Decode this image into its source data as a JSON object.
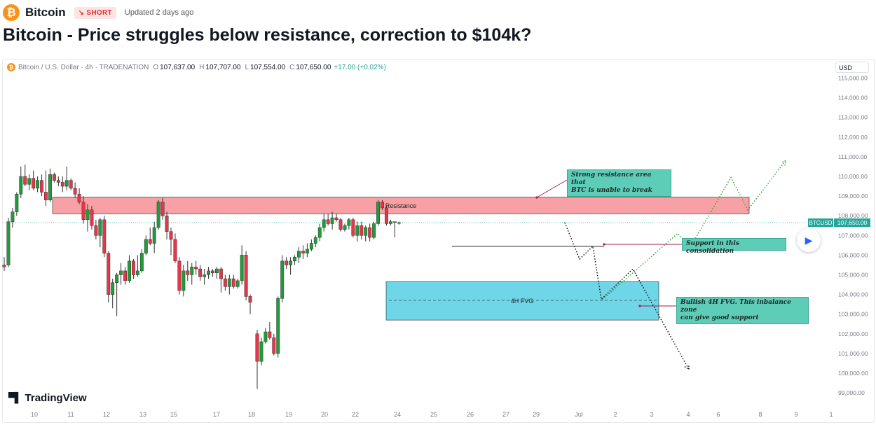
{
  "header": {
    "asset_name": "Bitcoin",
    "badge": "SHORT",
    "badge_arrow": "↘",
    "updated": "Updated 2 days ago"
  },
  "title": "Bitcoin - Price struggles below resistance, correction to $104k?",
  "legend": {
    "symbol": "Bitcoin / U.S. Dollar · 4h · TRADENATION",
    "open_label": "O",
    "open": "107,637.00",
    "high_label": "H",
    "high": "107,707.00",
    "low_label": "L",
    "low": "107,554.00",
    "close_label": "C",
    "close": "107,650.00",
    "change": "+17.00 (+0.02%)"
  },
  "currency_button": "USD",
  "price_tag": {
    "symbol": "BTCUSD",
    "price": "107,650.00"
  },
  "brand": "TradingView",
  "annotations": {
    "resistance_note": [
      "Strong resistance area that",
      "BTC is unable to break"
    ],
    "consolidation_note": "Support in this consolidation",
    "fvg_note": [
      "Bullish 4H FVG. This inbalance zone",
      "can give good support"
    ]
  },
  "chart_data": {
    "type": "candlestick",
    "interval": "4h",
    "y_axis": {
      "ticks": [
        "115,000.00",
        "114,000.00",
        "113,000.00",
        "112,000.00",
        "111,000.00",
        "110,000.00",
        "109,000.00",
        "108,000.00",
        "107,000.00",
        "106,000.00",
        "105,000.00",
        "104,000.00",
        "103,000.00",
        "102,000.00",
        "101,000.00",
        "100,000.00",
        "99,000.00"
      ],
      "ylim": [
        98700,
        115200
      ]
    },
    "x_axis": {
      "ticks": [
        "10",
        "11",
        "12",
        "13",
        "15",
        "17",
        "18",
        "19",
        "20",
        "22",
        "24",
        "25",
        "26",
        "27",
        "29",
        "Jul",
        "2",
        "3",
        "4",
        "6",
        "8",
        "9",
        "1"
      ]
    },
    "zones": [
      {
        "label": "Resistance",
        "low": 108100,
        "high": 108950,
        "color": "#f7a1a6"
      },
      {
        "label": "4H FVG",
        "low": 102700,
        "high": 104650,
        "color": "#6fd6e8"
      }
    ],
    "lines": [
      {
        "name": "current price",
        "value": 107650
      },
      {
        "name": "consolidation support",
        "value": 106450
      },
      {
        "name": "fvg midline",
        "value": 103700
      }
    ],
    "candles": [
      {
        "o": 105500,
        "h": 105900,
        "l": 105200,
        "c": 105400
      },
      {
        "o": 105500,
        "h": 107900,
        "l": 105400,
        "c": 107700
      },
      {
        "o": 107700,
        "h": 108400,
        "l": 107400,
        "c": 108200
      },
      {
        "o": 108200,
        "h": 109200,
        "l": 108000,
        "c": 109100
      },
      {
        "o": 109100,
        "h": 110500,
        "l": 108900,
        "c": 110000
      },
      {
        "o": 110000,
        "h": 110600,
        "l": 109500,
        "c": 109600
      },
      {
        "o": 109600,
        "h": 110100,
        "l": 109300,
        "c": 109900
      },
      {
        "o": 109900,
        "h": 110300,
        "l": 109300,
        "c": 109400
      },
      {
        "o": 109400,
        "h": 110000,
        "l": 109200,
        "c": 109800
      },
      {
        "o": 109800,
        "h": 110100,
        "l": 109000,
        "c": 109200
      },
      {
        "o": 109200,
        "h": 110300,
        "l": 108500,
        "c": 108800
      },
      {
        "o": 108800,
        "h": 110400,
        "l": 108700,
        "c": 110100
      },
      {
        "o": 110100,
        "h": 110200,
        "l": 109700,
        "c": 109800
      },
      {
        "o": 109800,
        "h": 110000,
        "l": 109500,
        "c": 109700
      },
      {
        "o": 109700,
        "h": 110000,
        "l": 109200,
        "c": 109500
      },
      {
        "o": 109500,
        "h": 110500,
        "l": 109300,
        "c": 109800
      },
      {
        "o": 109800,
        "h": 109900,
        "l": 109300,
        "c": 109400
      },
      {
        "o": 109400,
        "h": 109700,
        "l": 108900,
        "c": 109100
      },
      {
        "o": 109100,
        "h": 109400,
        "l": 108600,
        "c": 108700
      },
      {
        "o": 108700,
        "h": 109000,
        "l": 107600,
        "c": 107800
      },
      {
        "o": 107800,
        "h": 108600,
        "l": 107200,
        "c": 108300
      },
      {
        "o": 108300,
        "h": 108500,
        "l": 107300,
        "c": 107500
      },
      {
        "o": 107500,
        "h": 107800,
        "l": 106800,
        "c": 107000
      },
      {
        "o": 107000,
        "h": 107900,
        "l": 106400,
        "c": 107800
      },
      {
        "o": 107800,
        "h": 108000,
        "l": 105900,
        "c": 106100
      },
      {
        "o": 106100,
        "h": 106200,
        "l": 103600,
        "c": 104000
      },
      {
        "o": 104000,
        "h": 104800,
        "l": 103300,
        "c": 104600
      },
      {
        "o": 104600,
        "h": 105100,
        "l": 102900,
        "c": 105000
      },
      {
        "o": 105000,
        "h": 105600,
        "l": 104500,
        "c": 105200
      },
      {
        "o": 105200,
        "h": 105400,
        "l": 104500,
        "c": 104700
      },
      {
        "o": 104700,
        "h": 106000,
        "l": 104600,
        "c": 105700
      },
      {
        "o": 105700,
        "h": 105800,
        "l": 104800,
        "c": 105000
      },
      {
        "o": 105000,
        "h": 106000,
        "l": 104900,
        "c": 105200
      },
      {
        "o": 105200,
        "h": 106300,
        "l": 105100,
        "c": 106100
      },
      {
        "o": 106100,
        "h": 107000,
        "l": 106000,
        "c": 106800
      },
      {
        "o": 106800,
        "h": 107400,
        "l": 106500,
        "c": 106600
      },
      {
        "o": 106600,
        "h": 107700,
        "l": 106100,
        "c": 107400
      },
      {
        "o": 107400,
        "h": 108800,
        "l": 107300,
        "c": 108700
      },
      {
        "o": 108700,
        "h": 108900,
        "l": 107800,
        "c": 108000
      },
      {
        "o": 108000,
        "h": 108200,
        "l": 106800,
        "c": 107200
      },
      {
        "o": 107200,
        "h": 107400,
        "l": 106000,
        "c": 106800
      },
      {
        "o": 106800,
        "h": 107100,
        "l": 105600,
        "c": 105700
      },
      {
        "o": 105700,
        "h": 105900,
        "l": 104000,
        "c": 104200
      },
      {
        "o": 104200,
        "h": 105500,
        "l": 103900,
        "c": 105200
      },
      {
        "o": 105200,
        "h": 105700,
        "l": 104700,
        "c": 105000
      },
      {
        "o": 105000,
        "h": 105600,
        "l": 104500,
        "c": 105400
      },
      {
        "o": 105400,
        "h": 105700,
        "l": 105000,
        "c": 105300
      },
      {
        "o": 105300,
        "h": 105500,
        "l": 104700,
        "c": 104900
      },
      {
        "o": 104900,
        "h": 105300,
        "l": 104500,
        "c": 105000
      },
      {
        "o": 105000,
        "h": 105400,
        "l": 104800,
        "c": 105200
      },
      {
        "o": 105200,
        "h": 105300,
        "l": 104900,
        "c": 105100
      },
      {
        "o": 105100,
        "h": 105400,
        "l": 104800,
        "c": 105300
      },
      {
        "o": 105300,
        "h": 105400,
        "l": 104100,
        "c": 104800
      },
      {
        "o": 104800,
        "h": 105000,
        "l": 104200,
        "c": 104400
      },
      {
        "o": 104400,
        "h": 105000,
        "l": 104000,
        "c": 104800
      },
      {
        "o": 104800,
        "h": 105000,
        "l": 104300,
        "c": 104400
      },
      {
        "o": 104400,
        "h": 104800,
        "l": 104300,
        "c": 104700
      },
      {
        "o": 104700,
        "h": 106500,
        "l": 104500,
        "c": 106000
      },
      {
        "o": 106000,
        "h": 106200,
        "l": 103700,
        "c": 103900
      },
      {
        "o": 103900,
        "h": 104000,
        "l": 103000,
        "c": 103600
      },
      {
        "o": 102000,
        "h": 102200,
        "l": 99200,
        "c": 100600
      },
      {
        "o": 100600,
        "h": 101800,
        "l": 100400,
        "c": 101600
      },
      {
        "o": 101600,
        "h": 102300,
        "l": 101500,
        "c": 102100
      },
      {
        "o": 102100,
        "h": 102600,
        "l": 101700,
        "c": 101800
      },
      {
        "o": 101800,
        "h": 102000,
        "l": 100900,
        "c": 101000
      },
      {
        "o": 101000,
        "h": 103900,
        "l": 100800,
        "c": 103800
      },
      {
        "o": 103800,
        "h": 106000,
        "l": 103600,
        "c": 105700
      },
      {
        "o": 105700,
        "h": 105900,
        "l": 105300,
        "c": 105500
      },
      {
        "o": 105500,
        "h": 105900,
        "l": 105000,
        "c": 105700
      },
      {
        "o": 105700,
        "h": 106000,
        "l": 105500,
        "c": 105900
      },
      {
        "o": 105900,
        "h": 106400,
        "l": 105600,
        "c": 106200
      },
      {
        "o": 106200,
        "h": 106500,
        "l": 105800,
        "c": 106100
      },
      {
        "o": 106100,
        "h": 106600,
        "l": 105900,
        "c": 106300
      },
      {
        "o": 106300,
        "h": 106800,
        "l": 106200,
        "c": 106600
      },
      {
        "o": 106600,
        "h": 107000,
        "l": 106400,
        "c": 106900
      },
      {
        "o": 106900,
        "h": 107600,
        "l": 106700,
        "c": 107400
      },
      {
        "o": 107400,
        "h": 108100,
        "l": 107200,
        "c": 107800
      },
      {
        "o": 107800,
        "h": 108100,
        "l": 107500,
        "c": 107600
      },
      {
        "o": 107600,
        "h": 108200,
        "l": 107300,
        "c": 107900
      },
      {
        "o": 107900,
        "h": 108100,
        "l": 107700,
        "c": 107800
      },
      {
        "o": 107800,
        "h": 107900,
        "l": 107200,
        "c": 107300
      },
      {
        "o": 107300,
        "h": 107600,
        "l": 107200,
        "c": 107500
      },
      {
        "o": 107500,
        "h": 107900,
        "l": 107300,
        "c": 107800
      },
      {
        "o": 107800,
        "h": 107900,
        "l": 106900,
        "c": 107000
      },
      {
        "o": 107000,
        "h": 107700,
        "l": 106700,
        "c": 107500
      },
      {
        "o": 107500,
        "h": 107700,
        "l": 106800,
        "c": 107000
      },
      {
        "o": 107000,
        "h": 107500,
        "l": 106700,
        "c": 107400
      },
      {
        "o": 107400,
        "h": 107600,
        "l": 106700,
        "c": 106900
      },
      {
        "o": 106900,
        "h": 107700,
        "l": 106800,
        "c": 107600
      },
      {
        "o": 107600,
        "h": 108800,
        "l": 107500,
        "c": 108700
      },
      {
        "o": 108700,
        "h": 108800,
        "l": 108300,
        "c": 108400
      },
      {
        "o": 108400,
        "h": 108500,
        "l": 107500,
        "c": 107600
      },
      {
        "o": 107600,
        "h": 107800,
        "l": 107500,
        "c": 107700
      },
      {
        "o": 107700,
        "h": 107700,
        "l": 106900,
        "c": 107700
      },
      {
        "o": 107637,
        "h": 107707,
        "l": 107554,
        "c": 107650
      }
    ],
    "projections": [
      {
        "name": "bearish path",
        "color": "#000000",
        "points": [
          [
            107650,
            "now"
          ],
          [
            105800
          ],
          [
            106450
          ],
          [
            103750
          ],
          [
            105300
          ],
          [
            100200
          ]
        ]
      },
      {
        "name": "bullish path",
        "color": "#22a32c",
        "points": [
          [
            103750
          ],
          [
            107100
          ],
          [
            106400
          ],
          [
            109950
          ],
          [
            108300
          ],
          [
            110800
          ]
        ]
      }
    ]
  }
}
